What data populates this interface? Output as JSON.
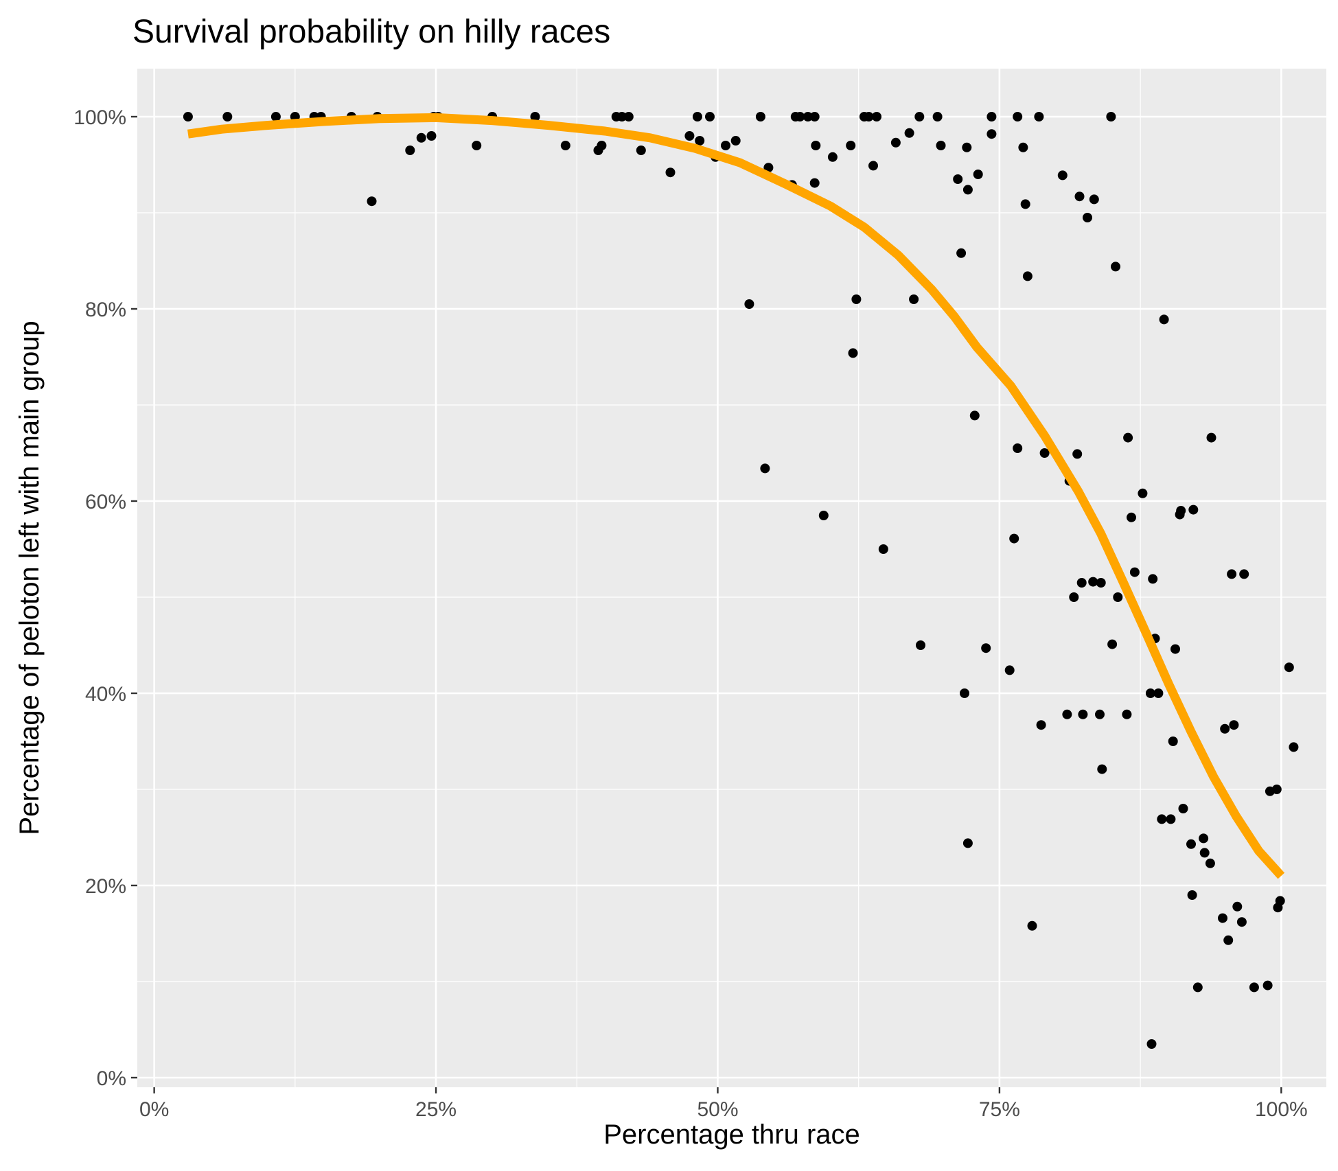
{
  "chart_data": {
    "type": "scatter",
    "title": "Survival probability on hilly races",
    "xlabel": "Percentage thru race",
    "ylabel": "Percentage of peloton left with main group",
    "xlim": [
      -1.5,
      104
    ],
    "ylim": [
      -1,
      105
    ],
    "x_ticks": [
      0,
      25,
      50,
      75,
      100
    ],
    "x_tick_labels": [
      "0%",
      "25%",
      "50%",
      "75%",
      "100%"
    ],
    "y_ticks": [
      0,
      20,
      40,
      60,
      80,
      100
    ],
    "y_tick_labels": [
      "0%",
      "20%",
      "40%",
      "60%",
      "80%",
      "100%"
    ],
    "grid": true,
    "colors": {
      "panel": "#ebebeb",
      "gridline": "#ffffff",
      "points": "#000000",
      "trend": "#ffa500"
    },
    "points": [
      [
        3,
        100
      ],
      [
        6.5,
        100
      ],
      [
        10.8,
        100
      ],
      [
        12.5,
        100
      ],
      [
        14.2,
        100
      ],
      [
        14.8,
        100
      ],
      [
        17.5,
        100
      ],
      [
        19.8,
        100
      ],
      [
        19.3,
        91.2
      ],
      [
        22.7,
        96.5
      ],
      [
        23.7,
        97.8
      ],
      [
        24.6,
        98.0
      ],
      [
        24.8,
        100
      ],
      [
        25.2,
        100
      ],
      [
        28.6,
        97.0
      ],
      [
        30,
        100
      ],
      [
        33.8,
        100
      ],
      [
        36.5,
        97.0
      ],
      [
        39.4,
        96.5
      ],
      [
        39.7,
        97.0
      ],
      [
        41,
        100
      ],
      [
        41.5,
        100
      ],
      [
        42.1,
        100
      ],
      [
        43.2,
        96.5
      ],
      [
        45.8,
        94.2
      ],
      [
        47.5,
        98.0
      ],
      [
        48.2,
        100
      ],
      [
        48.4,
        97.5
      ],
      [
        49.3,
        100
      ],
      [
        49.8,
        95.8
      ],
      [
        50.7,
        97.0
      ],
      [
        51.6,
        97.5
      ],
      [
        52.8,
        80.5
      ],
      [
        53.8,
        100
      ],
      [
        54.2,
        63.4
      ],
      [
        54.5,
        94.7
      ],
      [
        56.6,
        92.9
      ],
      [
        56.9,
        100
      ],
      [
        57.3,
        100
      ],
      [
        58,
        100
      ],
      [
        58.6,
        100
      ],
      [
        58.7,
        97.0
      ],
      [
        58.6,
        93.1
      ],
      [
        59.4,
        58.5
      ],
      [
        60.2,
        95.8
      ],
      [
        61.8,
        97.0
      ],
      [
        62.0,
        75.4
      ],
      [
        62.3,
        81.0
      ],
      [
        63,
        100
      ],
      [
        63.4,
        100
      ],
      [
        64.1,
        100
      ],
      [
        63.8,
        94.9
      ],
      [
        64.7,
        55.0
      ],
      [
        65.8,
        97.3
      ],
      [
        67.0,
        98.3
      ],
      [
        67.4,
        81.0
      ],
      [
        67.9,
        100
      ],
      [
        68.0,
        45.0
      ],
      [
        69.5,
        100
      ],
      [
        69.8,
        97.0
      ],
      [
        71.3,
        93.5
      ],
      [
        71.6,
        85.8
      ],
      [
        71.9,
        40.0
      ],
      [
        72.1,
        96.8
      ],
      [
        72.2,
        92.4
      ],
      [
        72.2,
        24.4
      ],
      [
        72.8,
        68.9
      ],
      [
        73.1,
        94.0
      ],
      [
        73.8,
        44.7
      ],
      [
        74.3,
        100
      ],
      [
        74.3,
        98.2
      ],
      [
        75.9,
        42.4
      ],
      [
        76.3,
        56.1
      ],
      [
        76.6,
        65.5
      ],
      [
        76.6,
        100
      ],
      [
        77.1,
        96.8
      ],
      [
        77.3,
        90.9
      ],
      [
        77.5,
        83.4
      ],
      [
        77.9,
        15.8
      ],
      [
        78.5,
        100
      ],
      [
        78.7,
        36.7
      ],
      [
        79.0,
        65.0
      ],
      [
        80.6,
        93.9
      ],
      [
        81.0,
        37.8
      ],
      [
        81.2,
        62.1
      ],
      [
        81.6,
        50.0
      ],
      [
        81.9,
        64.9
      ],
      [
        82.1,
        91.7
      ],
      [
        82.3,
        51.5
      ],
      [
        82.4,
        37.8
      ],
      [
        82.8,
        89.5
      ],
      [
        83.3,
        51.6
      ],
      [
        83.4,
        91.4
      ],
      [
        83.9,
        37.8
      ],
      [
        84.1,
        32.1
      ],
      [
        84.0,
        51.5
      ],
      [
        84.9,
        100
      ],
      [
        85.0,
        45.1
      ],
      [
        85.3,
        84.4
      ],
      [
        85.5,
        50.0
      ],
      [
        86.3,
        37.8
      ],
      [
        86.4,
        66.6
      ],
      [
        86.7,
        58.3
      ],
      [
        87.0,
        52.6
      ],
      [
        87.7,
        60.8
      ],
      [
        88.4,
        40.0
      ],
      [
        88.5,
        3.5
      ],
      [
        88.6,
        51.9
      ],
      [
        88.8,
        45.7
      ],
      [
        89.1,
        40.0
      ],
      [
        89.4,
        26.9
      ],
      [
        89.6,
        78.9
      ],
      [
        90.2,
        26.9
      ],
      [
        90.4,
        35.0
      ],
      [
        90.6,
        44.6
      ],
      [
        91.0,
        58.6
      ],
      [
        91.1,
        59.0
      ],
      [
        91.3,
        28.0
      ],
      [
        92.0,
        24.3
      ],
      [
        92.1,
        19.0
      ],
      [
        92.2,
        59.1
      ],
      [
        92.6,
        9.4
      ],
      [
        93.1,
        24.9
      ],
      [
        93.2,
        23.4
      ],
      [
        93.7,
        22.3
      ],
      [
        93.8,
        66.6
      ],
      [
        94.8,
        16.6
      ],
      [
        95.0,
        36.3
      ],
      [
        95.3,
        14.3
      ],
      [
        95.6,
        52.4
      ],
      [
        95.8,
        36.7
      ],
      [
        96.1,
        17.8
      ],
      [
        96.5,
        16.2
      ],
      [
        96.7,
        52.4
      ],
      [
        97.6,
        9.4
      ],
      [
        98.8,
        9.6
      ],
      [
        99.0,
        29.8
      ],
      [
        99.6,
        30.0
      ],
      [
        99.7,
        17.7
      ],
      [
        99.9,
        18.4
      ],
      [
        100.7,
        42.7
      ],
      [
        101.1,
        34.4
      ]
    ],
    "trend": [
      [
        3,
        98.2
      ],
      [
        6,
        98.7
      ],
      [
        10,
        99.1
      ],
      [
        15,
        99.5
      ],
      [
        20,
        99.8
      ],
      [
        25,
        99.9
      ],
      [
        30,
        99.6
      ],
      [
        35,
        99.1
      ],
      [
        40,
        98.5
      ],
      [
        44,
        97.8
      ],
      [
        48,
        96.7
      ],
      [
        52,
        95.2
      ],
      [
        56,
        93.0
      ],
      [
        60,
        90.7
      ],
      [
        63,
        88.5
      ],
      [
        66,
        85.6
      ],
      [
        69,
        82.0
      ],
      [
        71,
        79.2
      ],
      [
        73,
        76.0
      ],
      [
        76,
        72.0
      ],
      [
        79,
        66.8
      ],
      [
        82,
        61.0
      ],
      [
        84,
        56.6
      ],
      [
        86,
        51.5
      ],
      [
        88,
        46.3
      ],
      [
        90,
        41.0
      ],
      [
        92,
        36.0
      ],
      [
        94,
        31.3
      ],
      [
        96,
        27.2
      ],
      [
        98,
        23.6
      ],
      [
        100,
        21.0
      ]
    ]
  }
}
